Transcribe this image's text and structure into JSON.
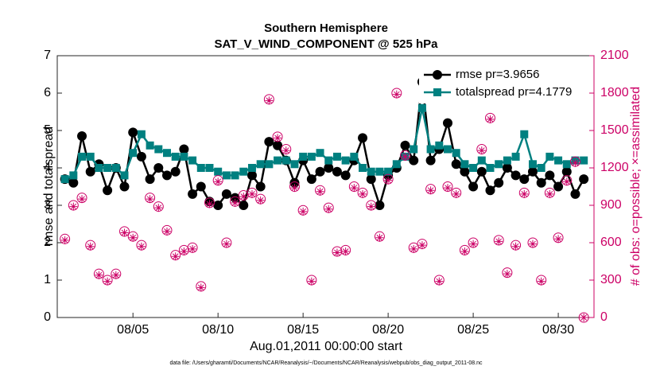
{
  "chart_data": {
    "type": "line",
    "title": "Southern Hemisphere",
    "subtitle": "SAT_V_WIND_COMPONENT @ 525 hPa",
    "x_label": "Aug.01,2011 00:00:00 start",
    "y_label": "rmse and totalspread",
    "y2_label": "# of obs: o=possible; ×=assimilated",
    "footnote": "data file: /Users/gharamti/Documents/NCAR/Reanalysis/~/Documents/NCAR/Reanalysis/webpub/obs_diag_output_2011-08.nc",
    "x": [
      1,
      1.5,
      2,
      2.5,
      3,
      3.5,
      4,
      4.5,
      5,
      5.5,
      6,
      6.5,
      7,
      7.5,
      8,
      8.5,
      9,
      9.5,
      10,
      10.5,
      11,
      11.5,
      12,
      12.5,
      13,
      13.5,
      14,
      14.5,
      15,
      15.5,
      16,
      16.5,
      17,
      17.5,
      18,
      18.5,
      19,
      19.5,
      20,
      20.5,
      21,
      21.5,
      22,
      22.5,
      23,
      23.5,
      24,
      24.5,
      25,
      25.5,
      26,
      26.5,
      27,
      27.5,
      28,
      28.5,
      29,
      29.5,
      30,
      30.5,
      31,
      31.5
    ],
    "xlim": [
      0.55,
      32.1
    ],
    "xticks": [
      {
        "value": 5,
        "label": "08/05"
      },
      {
        "value": 10,
        "label": "08/10"
      },
      {
        "value": 15,
        "label": "08/15"
      },
      {
        "value": 20,
        "label": "08/20"
      },
      {
        "value": 25,
        "label": "08/25"
      },
      {
        "value": 30,
        "label": "08/30"
      }
    ],
    "ylim": [
      0,
      7
    ],
    "yticks": [
      0,
      1,
      2,
      3,
      4,
      5,
      6,
      7
    ],
    "y2lim": [
      0,
      2100
    ],
    "y2ticks": [
      0,
      300,
      600,
      900,
      1200,
      1500,
      1800,
      2100
    ],
    "legend": "upper right",
    "series": [
      {
        "name": "rmse pr=3.9656",
        "color": "#000000",
        "marker": "circle",
        "values": [
          3.7,
          3.6,
          4.85,
          3.9,
          4.1,
          3.4,
          4.0,
          3.5,
          4.95,
          4.3,
          3.7,
          4.0,
          3.8,
          3.9,
          4.5,
          3.3,
          3.5,
          3.1,
          3.0,
          3.3,
          3.2,
          3.0,
          3.8,
          3.5,
          4.7,
          4.6,
          4.2,
          3.6,
          4.2,
          3.7,
          3.9,
          4.0,
          3.9,
          3.8,
          4.2,
          4.8,
          3.7,
          3.0,
          3.8,
          4.0,
          4.6,
          4.2,
          6.3,
          4.2,
          4.5,
          5.2,
          4.1,
          3.9,
          3.5,
          3.9,
          3.4,
          3.6,
          4.0,
          3.8,
          3.7,
          3.9,
          3.6,
          3.8,
          3.5,
          3.9,
          3.3,
          3.7
        ]
      },
      {
        "name": "totalspread pr=4.1779",
        "color": "#008080",
        "marker": "square",
        "values": [
          3.7,
          3.8,
          4.3,
          4.3,
          4.0,
          4.0,
          4.0,
          3.8,
          4.4,
          4.9,
          4.6,
          4.5,
          4.4,
          4.3,
          4.3,
          4.2,
          4.0,
          4.0,
          3.9,
          3.8,
          3.8,
          3.9,
          4.0,
          4.1,
          4.1,
          4.2,
          4.2,
          4.1,
          4.3,
          4.3,
          4.4,
          4.2,
          4.3,
          4.2,
          4.3,
          4.0,
          3.9,
          3.9,
          3.9,
          4.1,
          4.3,
          4.5,
          5.6,
          4.5,
          4.6,
          4.5,
          4.4,
          4.1,
          4.0,
          4.2,
          4.0,
          4.1,
          4.2,
          4.3,
          4.9,
          4.1,
          4.0,
          4.3,
          4.2,
          4.1,
          4.2,
          4.2
        ]
      },
      {
        "color": "#cc0066",
        "marker": "open-circle",
        "axis": "y2",
        "values": [
          630,
          900,
          960,
          580,
          350,
          300,
          350,
          690,
          650,
          580,
          960,
          890,
          700,
          500,
          540,
          560,
          250,
          920,
          1100,
          600,
          930,
          980,
          1000,
          950,
          1750,
          1450,
          1350,
          1050,
          860,
          300,
          1020,
          880,
          530,
          540,
          1050,
          1000,
          900,
          650,
          1110,
          1800,
          1300,
          560,
          590,
          1030,
          300,
          1050,
          1000,
          540,
          600,
          1350,
          1600,
          620,
          360,
          580,
          1000,
          600,
          300,
          1000,
          640,
          1100,
          1250,
          0
        ]
      },
      {
        "color": "#cc0066",
        "marker": "asterisk",
        "axis": "y2",
        "values": [
          620,
          890,
          950,
          570,
          340,
          290,
          340,
          680,
          640,
          570,
          950,
          880,
          690,
          490,
          530,
          550,
          240,
          910,
          1090,
          590,
          920,
          970,
          990,
          940,
          1740,
          1440,
          1340,
          1040,
          850,
          290,
          1010,
          870,
          520,
          530,
          1040,
          990,
          890,
          640,
          1100,
          1790,
          1290,
          550,
          580,
          1020,
          290,
          1040,
          990,
          530,
          590,
          1340,
          1590,
          610,
          350,
          570,
          990,
          590,
          290,
          990,
          630,
          1090,
          1240,
          0
        ]
      }
    ]
  }
}
